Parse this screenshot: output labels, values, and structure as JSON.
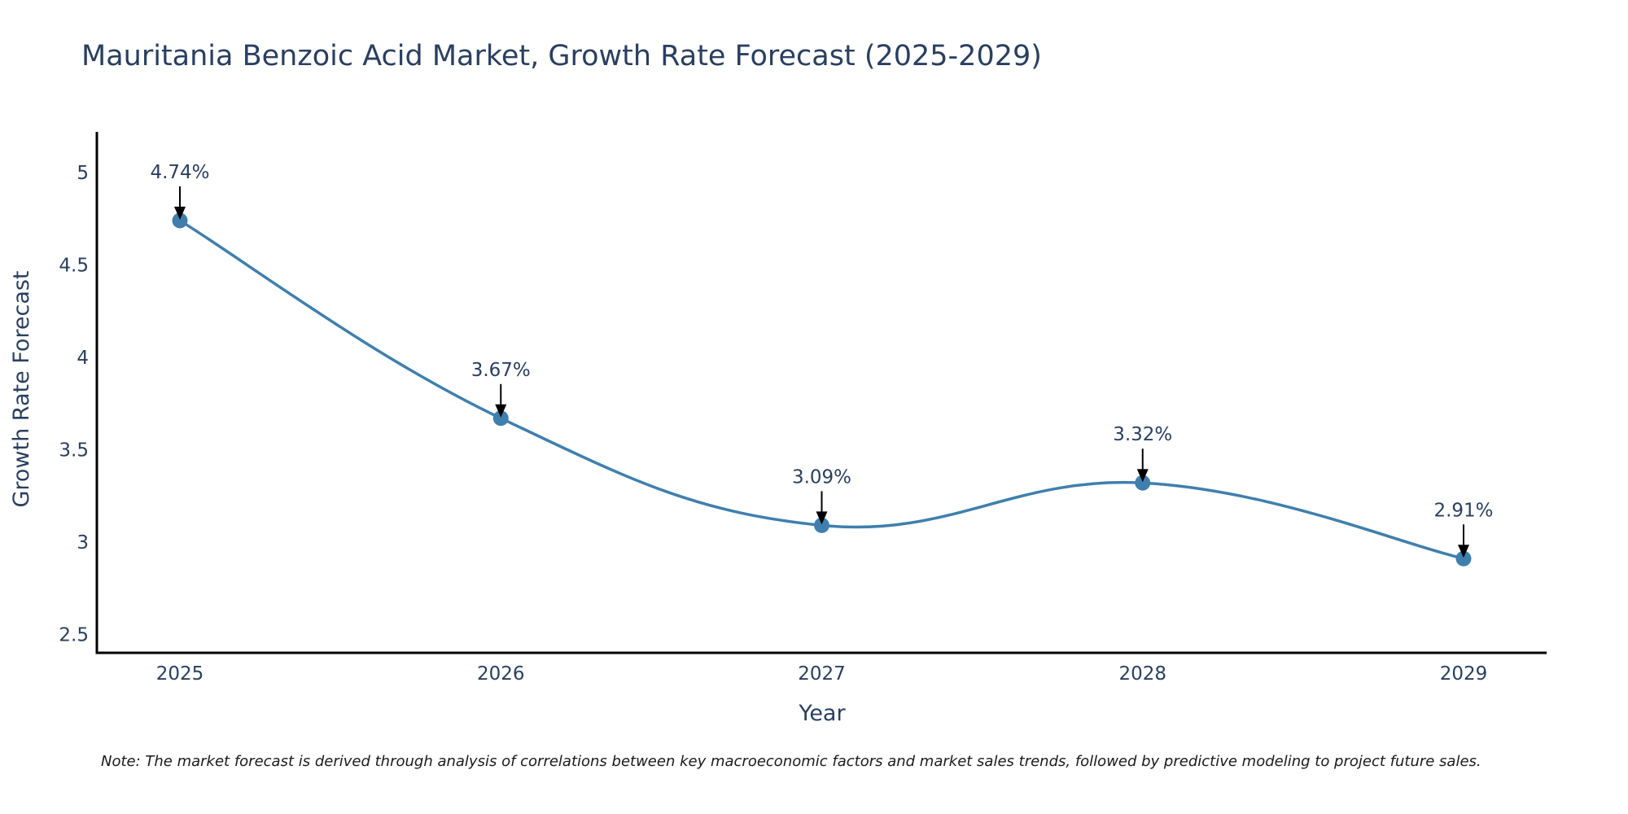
{
  "chart_data": {
    "type": "line",
    "title": "Mauritania Benzoic Acid Market, Growth Rate Forecast (2025-2029)",
    "xlabel": "Year",
    "ylabel": "Growth Rate Forecast",
    "categories": [
      "2025",
      "2026",
      "2027",
      "2028",
      "2029"
    ],
    "series": [
      {
        "name": "Growth Rate Forecast",
        "values": [
          4.74,
          3.67,
          3.09,
          3.32,
          2.91
        ],
        "color": "#3f7fae",
        "line_shape": "spline"
      }
    ],
    "data_labels": [
      "4.74%",
      "3.67%",
      "3.09%",
      "3.32%",
      "2.91%"
    ],
    "ylim": [
      2.4,
      5.22
    ],
    "y_ticks": [
      2.5,
      3,
      3.5,
      4,
      4.5,
      5
    ],
    "y_tick_labels": [
      "2.5",
      "3",
      "3.5",
      "4",
      "4.5",
      "5"
    ],
    "grid": false,
    "note": "Note: The market forecast is derived through analysis of correlations between key macroeconomic factors and market sales trends, followed by predictive modeling to project future sales."
  }
}
